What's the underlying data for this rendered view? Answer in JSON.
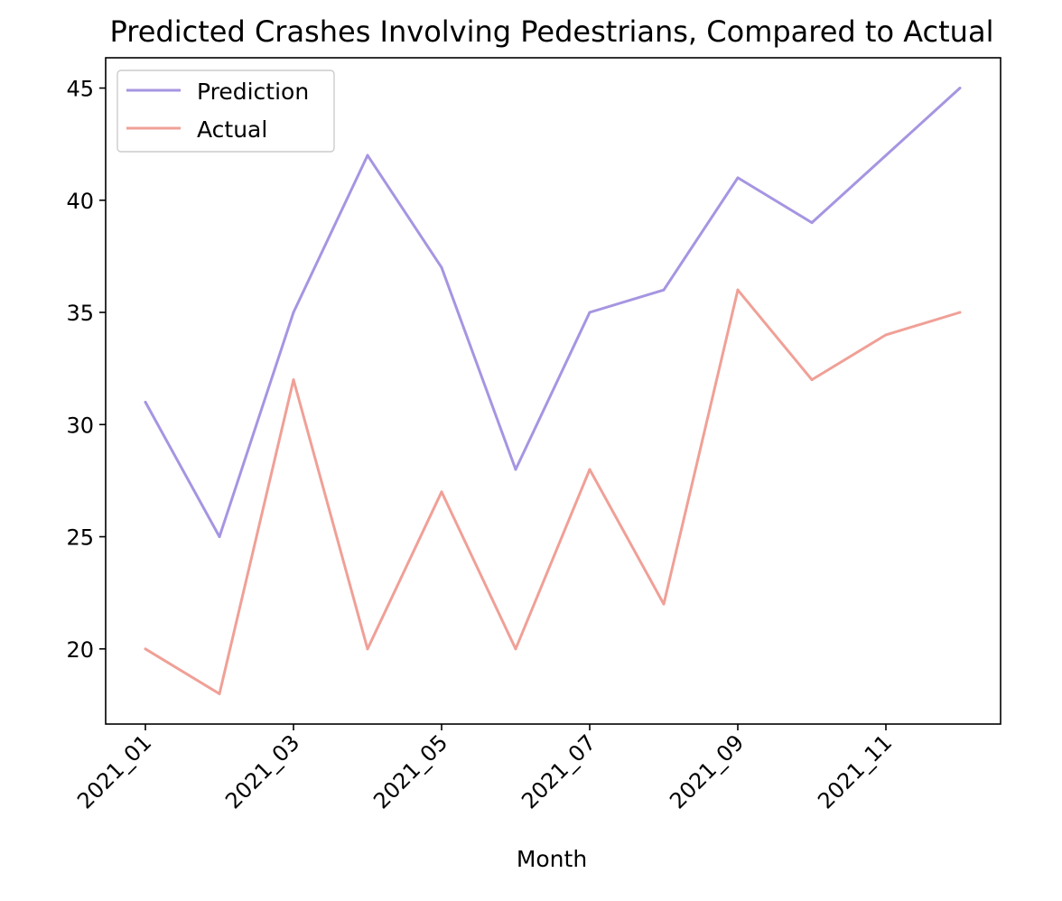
{
  "chart_data": {
    "type": "line",
    "title": "Predicted Crashes Involving Pedestrians, Compared to Actual",
    "xlabel": "Month",
    "ylabel": "",
    "categories": [
      "2021_01",
      "2021_02",
      "2021_03",
      "2021_04",
      "2021_05",
      "2021_06",
      "2021_07",
      "2021_08",
      "2021_09",
      "2021_10",
      "2021_11",
      "2021_12"
    ],
    "x_tick_labels": [
      "2021_01",
      "2021_03",
      "2021_05",
      "2021_07",
      "2021_09",
      "2021_11"
    ],
    "y_ticks": [
      20,
      25,
      30,
      35,
      40,
      45
    ],
    "ylim": [
      16.65,
      46.35
    ],
    "grid": false,
    "legend_position": "upper-left",
    "series": [
      {
        "name": "Prediction",
        "color": "#a695e2",
        "values": [
          31,
          25,
          35,
          42,
          37,
          28,
          35,
          36,
          41,
          39,
          42,
          45
        ]
      },
      {
        "name": "Actual",
        "color": "#f0a097",
        "values": [
          20,
          18,
          32,
          20,
          27,
          20,
          28,
          22,
          36,
          32,
          34,
          35
        ]
      }
    ]
  }
}
